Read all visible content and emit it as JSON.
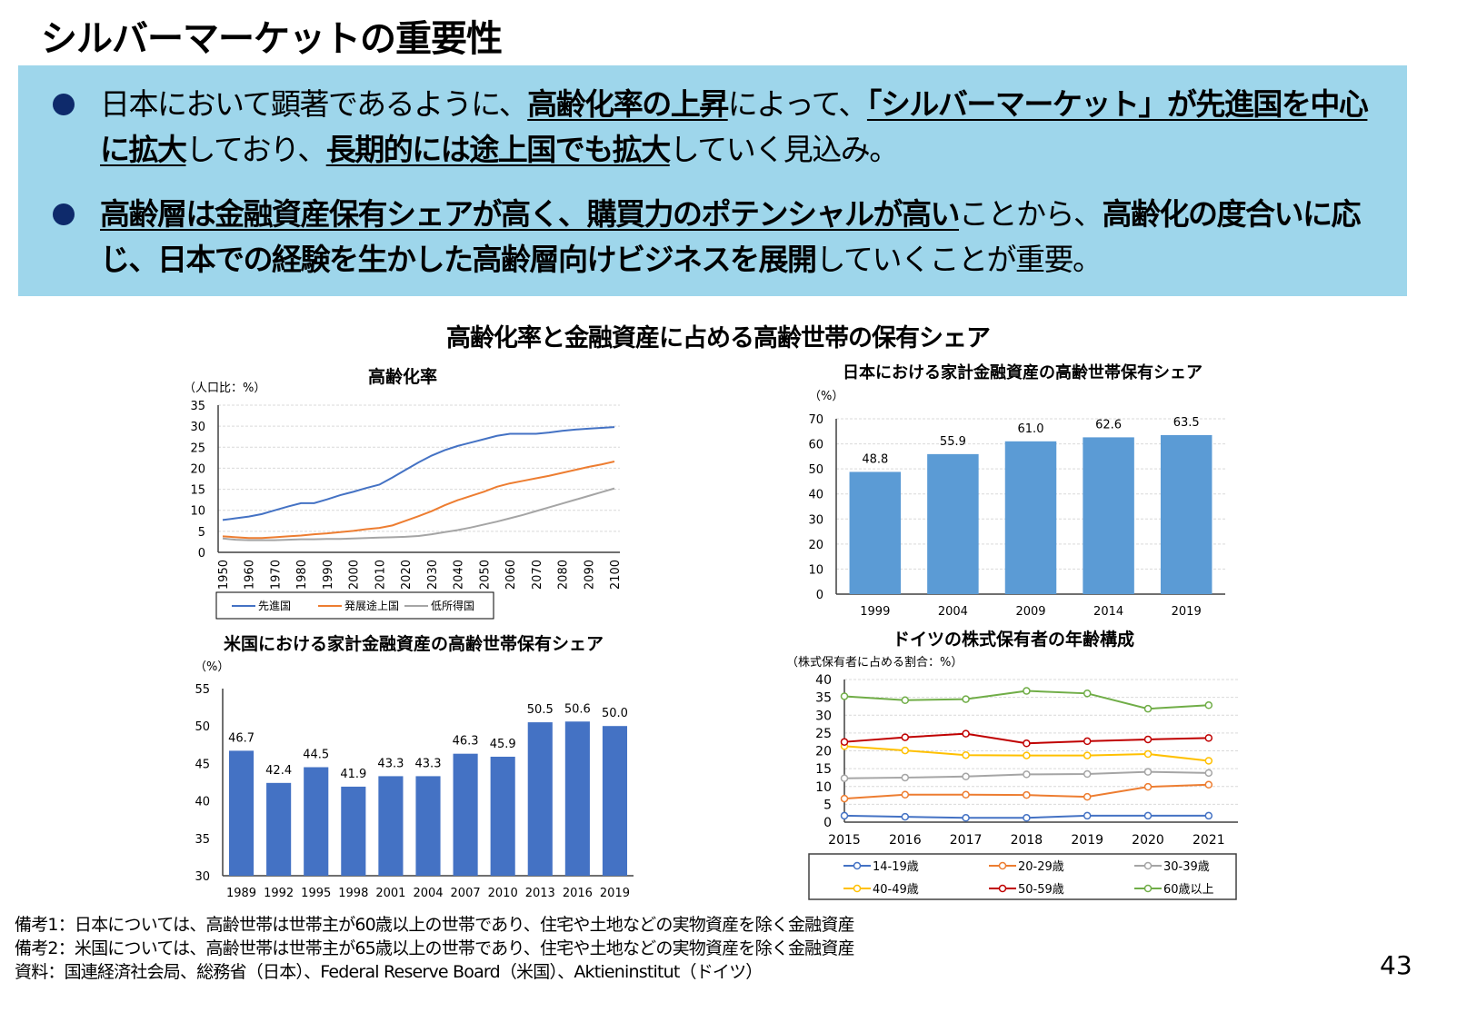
{
  "page": {
    "title": "シルバーマーケットの重要性",
    "page_number": "43",
    "bullets": [
      {
        "segments": [
          {
            "text": "日本において顕著であるように、",
            "bold": false,
            "underline": false
          },
          {
            "text": "高齢化率の上昇",
            "bold": true,
            "underline": true
          },
          {
            "text": "によって、",
            "bold": false,
            "underline": false
          },
          {
            "text": "「シルバーマーケット」が先進国を中心に拡大",
            "bold": true,
            "underline": true
          },
          {
            "text": "しており、",
            "bold": false,
            "underline": false
          },
          {
            "text": "長期的には途上国でも拡大",
            "bold": true,
            "underline": true
          },
          {
            "text": "していく見込み。",
            "bold": false,
            "underline": false
          }
        ]
      },
      {
        "segments": [
          {
            "text": "高齢層は金融資産保有シェアが高く、購買力のポテンシャルが高い",
            "bold": true,
            "underline": true
          },
          {
            "text": "ことから、",
            "bold": false,
            "underline": false
          },
          {
            "text": "高齢化の度合いに応じ、日本での経験を生かした高齢層向けビジネスを展開",
            "bold": true,
            "underline": false
          },
          {
            "text": "していくことが重要。",
            "bold": false,
            "underline": false
          }
        ]
      }
    ],
    "section_title": "高齢化率と金融資産に占める高齢世帯の保有シェア",
    "footnotes": [
      "備考1：日本については、高齢世帯は世帯主が60歳以上の世帯であり、住宅や土地などの実物資産を除く金融資産",
      "備考2：米国については、高齢世帯は世帯主が65歳以上の世帯であり、住宅や土地などの実物資産を除く金融資産",
      "資料：国連経済社会局、総務省（日本）、Federal Reserve Board（米国）、Aktieninstitut（ドイツ）"
    ],
    "colors": {
      "box_bg": "#9ED6EB",
      "bullet": "#0E2A6B"
    }
  },
  "chart_data": [
    {
      "id": "aging",
      "type": "line",
      "title": "高齢化率",
      "ylabel": "（人口比：%）",
      "ylim": [
        0,
        35
      ],
      "yticks": [
        0,
        5,
        10,
        15,
        20,
        25,
        30,
        35
      ],
      "xticks": [
        1950,
        1960,
        1970,
        1980,
        1990,
        2000,
        2010,
        2020,
        2030,
        2040,
        2050,
        2060,
        2070,
        2080,
        2090,
        2100
      ],
      "grid": true,
      "legend": "bottom",
      "x": [
        1950,
        1955,
        1960,
        1965,
        1970,
        1975,
        1980,
        1985,
        1990,
        1995,
        2000,
        2005,
        2010,
        2015,
        2020,
        2025,
        2030,
        2035,
        2040,
        2045,
        2050,
        2055,
        2060,
        2065,
        2070,
        2075,
        2080,
        2085,
        2090,
        2095,
        2100
      ],
      "series": [
        {
          "name": "先進国",
          "color": "#4472C4",
          "values": [
            7.7,
            8.1,
            8.5,
            9.1,
            10.0,
            10.9,
            11.7,
            11.7,
            12.6,
            13.6,
            14.4,
            15.3,
            16.1,
            17.8,
            19.6,
            21.4,
            23.0,
            24.3,
            25.3,
            26.1,
            26.9,
            27.7,
            28.2,
            28.2,
            28.2,
            28.5,
            28.9,
            29.2,
            29.4,
            29.6,
            29.8
          ]
        },
        {
          "name": "発展途上国",
          "color": "#ED7D31",
          "values": [
            3.8,
            3.6,
            3.4,
            3.4,
            3.6,
            3.8,
            4.0,
            4.3,
            4.5,
            4.8,
            5.1,
            5.5,
            5.8,
            6.4,
            7.5,
            8.6,
            9.8,
            11.2,
            12.4,
            13.4,
            14.4,
            15.6,
            16.4,
            17.0,
            17.6,
            18.2,
            18.9,
            19.6,
            20.3,
            20.9,
            21.6
          ]
        },
        {
          "name": "低所得国",
          "color": "#A5A5A5",
          "values": [
            3.3,
            3.0,
            2.9,
            2.9,
            2.9,
            3.0,
            3.1,
            3.1,
            3.2,
            3.2,
            3.3,
            3.4,
            3.5,
            3.6,
            3.7,
            3.9,
            4.3,
            4.8,
            5.3,
            5.9,
            6.6,
            7.3,
            8.1,
            8.9,
            9.8,
            10.7,
            11.6,
            12.5,
            13.4,
            14.3,
            15.2
          ]
        }
      ]
    },
    {
      "id": "japan",
      "type": "bar",
      "title": "日本における家計金融資産の高齢世帯保有シェア",
      "ylabel": "（%）",
      "ylim": [
        0,
        70
      ],
      "yticks": [
        0,
        10,
        20,
        30,
        40,
        50,
        60,
        70
      ],
      "categories": [
        "1999",
        "2004",
        "2009",
        "2014",
        "2019"
      ],
      "values": [
        48.8,
        55.9,
        61.0,
        62.6,
        63.5
      ],
      "data_labels": [
        "48.8",
        "55.9",
        "61.0",
        "62.6",
        "63.5"
      ],
      "color": "#5B9BD5",
      "grid": true
    },
    {
      "id": "us",
      "type": "bar",
      "title": "米国における家計金融資産の高齢世帯保有シェア",
      "ylabel": "（%）",
      "ylim": [
        30,
        55
      ],
      "yticks": [
        30,
        35,
        40,
        45,
        50,
        55
      ],
      "categories": [
        "1989",
        "1992",
        "1995",
        "1998",
        "2001",
        "2004",
        "2007",
        "2010",
        "2013",
        "2016",
        "2019"
      ],
      "values": [
        46.7,
        42.4,
        44.5,
        41.9,
        43.3,
        43.3,
        46.3,
        45.9,
        50.5,
        50.6,
        50.0
      ],
      "data_labels": [
        "46.7",
        "42.4",
        "44.5",
        "41.9",
        "43.3",
        "43.3",
        "46.3",
        "45.9",
        "50.5",
        "50.6",
        "50.0"
      ],
      "color": "#4472C4",
      "grid": false
    },
    {
      "id": "germany",
      "type": "line",
      "title": "ドイツの株式保有者の年齢構成",
      "ylabel": "（株式保有者に占める割合：%）",
      "ylim": [
        0,
        40
      ],
      "yticks": [
        0,
        5,
        10,
        15,
        20,
        25,
        30,
        35,
        40
      ],
      "categories": [
        "2015",
        "2016",
        "2017",
        "2018",
        "2019",
        "2020",
        "2021"
      ],
      "grid": true,
      "legend": "bottom",
      "markers": "open-circle",
      "series": [
        {
          "name": "14-19歳",
          "color": "#4472C4",
          "values": [
            1.8,
            1.5,
            1.2,
            1.2,
            1.8,
            1.8,
            1.8
          ]
        },
        {
          "name": "20-29歳",
          "color": "#ED7D31",
          "values": [
            6.6,
            7.7,
            7.7,
            7.6,
            7.1,
            9.9,
            10.5
          ]
        },
        {
          "name": "30-39歳",
          "color": "#A5A5A5",
          "values": [
            12.3,
            12.5,
            12.8,
            13.4,
            13.5,
            14.1,
            13.8
          ]
        },
        {
          "name": "40-49歳",
          "color": "#FFC000",
          "values": [
            21.3,
            20.1,
            18.8,
            18.7,
            18.7,
            19.1,
            17.2
          ]
        },
        {
          "name": "50-59歳",
          "color": "#C00000",
          "values": [
            22.5,
            23.8,
            24.8,
            22.1,
            22.7,
            23.2,
            23.6
          ]
        },
        {
          "name": "60歳以上",
          "color": "#70AD47",
          "values": [
            35.3,
            34.2,
            34.5,
            36.8,
            36.1,
            31.8,
            32.8
          ]
        }
      ]
    }
  ]
}
